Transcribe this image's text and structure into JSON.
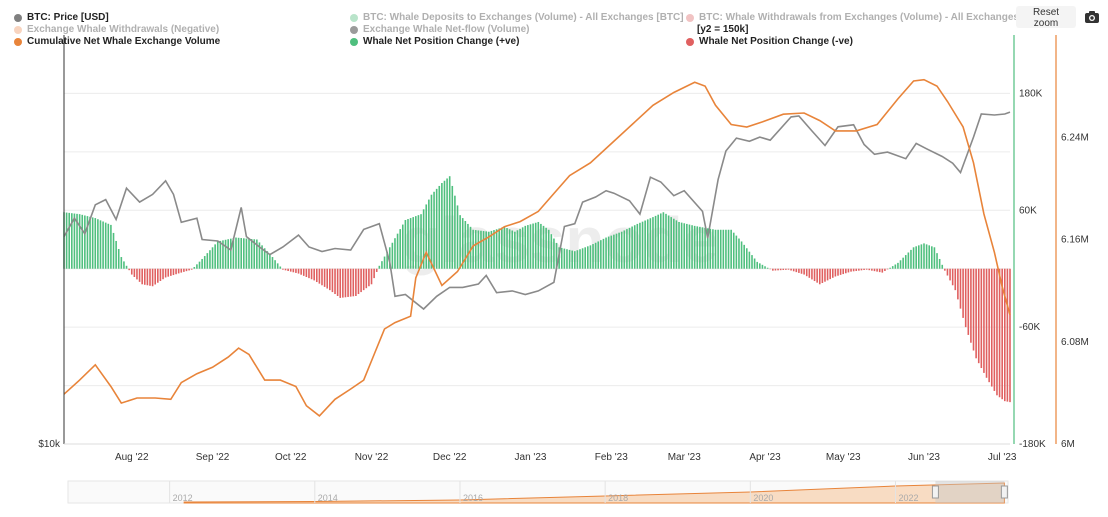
{
  "legend": {
    "items": [
      {
        "label": "BTC: Price [USD]",
        "color": "#808080",
        "faded": false
      },
      {
        "label": "BTC: Whale Deposits to Exchanges (Volume) - All Exchanges [BTC]",
        "color": "#63c48a",
        "faded": true
      },
      {
        "label": "BTC: Whale Withdrawals from Exchanges (Volume) - All Exchanges [BTC]",
        "color": "#e07b7b",
        "faded": true
      },
      {
        "label": "Exchange Whale Withdrawals (Negative)",
        "color": "#f0a070",
        "faded": true
      },
      {
        "label": "Exchange Whale Net-flow (Volume)",
        "color": "#222222",
        "faded": true
      },
      {
        "label": "Cumulative Net Whale Exchange Volume",
        "color": "#e8843a",
        "faded": false
      },
      {
        "label": "Whale Net Position Change (+ve)",
        "color": "#4fbf7e",
        "faded": false
      },
      {
        "label": "Whale Net Position Change (-ve)",
        "color": "#e06060",
        "faded": false
      }
    ],
    "y2_note": "[y2 = 150k]"
  },
  "controls": {
    "reset_zoom": "Reset zoom",
    "camera_icon": "camera-icon"
  },
  "watermark": "glassnode",
  "navigator": {
    "ticks": [
      {
        "year": 2012,
        "label": "2012"
      },
      {
        "year": 2014,
        "label": "2014"
      },
      {
        "year": 2016,
        "label": "2016"
      },
      {
        "year": 2018,
        "label": "2018"
      },
      {
        "year": 2020,
        "label": "2020"
      },
      {
        "year": 2022,
        "label": "2022"
      }
    ],
    "range_start": 2010.6,
    "range_end": 2023.55,
    "selected_start": 2022.55,
    "selected_end": 2023.5
  },
  "chart_data": {
    "type": "mixed",
    "x_range": [
      "2022-07-06",
      "2023-07-04"
    ],
    "x_ticks": [
      {
        "date": "2022-08-01",
        "label": "Aug '22"
      },
      {
        "date": "2022-09-01",
        "label": "Sep '22"
      },
      {
        "date": "2022-10-01",
        "label": "Oct '22"
      },
      {
        "date": "2022-11-01",
        "label": "Nov '22"
      },
      {
        "date": "2022-12-01",
        "label": "Dec '22"
      },
      {
        "date": "2023-01-01",
        "label": "Jan '23"
      },
      {
        "date": "2023-02-01",
        "label": "Feb '23"
      },
      {
        "date": "2023-03-01",
        "label": "Mar '23"
      },
      {
        "date": "2023-04-01",
        "label": "Apr '23"
      },
      {
        "date": "2023-05-01",
        "label": "May '23"
      },
      {
        "date": "2023-06-01",
        "label": "Jun '23"
      },
      {
        "date": "2023-07-01",
        "label": "Jul '23"
      }
    ],
    "left_axis": {
      "label": "$10k",
      "min": 10000,
      "max": 40000,
      "scale": "log"
    },
    "right_axis_1": {
      "min": -180000,
      "max": 240000,
      "ticks": [
        {
          "value": 180000,
          "label": "180K"
        },
        {
          "value": 60000,
          "label": "60K"
        },
        {
          "value": -60000,
          "label": "-60K"
        },
        {
          "value": -180000,
          "label": "-180K"
        }
      ]
    },
    "right_axis_2": {
      "min": 6000000,
      "max": 6320000,
      "ticks": [
        {
          "value": 6240000,
          "label": "6.24M"
        },
        {
          "value": 6160000,
          "label": "6.16M"
        },
        {
          "value": 6080000,
          "label": "6.08M"
        },
        {
          "value": 6000000,
          "label": "6M"
        }
      ]
    },
    "grid": true,
    "series": [
      {
        "name": "BTC: Price [USD]",
        "axis": "left",
        "style": "line",
        "color": "#8a8a8a",
        "points": [
          [
            "2022-07-06",
            20200
          ],
          [
            "2022-07-10",
            21500
          ],
          [
            "2022-07-14",
            20400
          ],
          [
            "2022-07-18",
            22500
          ],
          [
            "2022-07-22",
            22900
          ],
          [
            "2022-07-26",
            21400
          ],
          [
            "2022-07-30",
            23800
          ],
          [
            "2022-08-04",
            22700
          ],
          [
            "2022-08-09",
            23300
          ],
          [
            "2022-08-14",
            24400
          ],
          [
            "2022-08-17",
            23300
          ],
          [
            "2022-08-20",
            21200
          ],
          [
            "2022-08-26",
            21500
          ],
          [
            "2022-08-28",
            20000
          ],
          [
            "2022-09-03",
            19900
          ],
          [
            "2022-09-08",
            19300
          ],
          [
            "2022-09-12",
            22300
          ],
          [
            "2022-09-14",
            20200
          ],
          [
            "2022-09-19",
            19500
          ],
          [
            "2022-09-23",
            19000
          ],
          [
            "2022-09-28",
            19500
          ],
          [
            "2022-10-04",
            20300
          ],
          [
            "2022-10-08",
            19500
          ],
          [
            "2022-10-13",
            19200
          ],
          [
            "2022-10-18",
            19400
          ],
          [
            "2022-10-24",
            19300
          ],
          [
            "2022-10-29",
            20700
          ],
          [
            "2022-11-04",
            21100
          ],
          [
            "2022-11-08",
            18500
          ],
          [
            "2022-11-10",
            16500
          ],
          [
            "2022-11-14",
            16600
          ],
          [
            "2022-11-21",
            15800
          ],
          [
            "2022-11-26",
            16500
          ],
          [
            "2022-12-01",
            17000
          ],
          [
            "2022-12-06",
            17000
          ],
          [
            "2022-12-12",
            17200
          ],
          [
            "2022-12-15",
            17700
          ],
          [
            "2022-12-19",
            16700
          ],
          [
            "2022-12-25",
            16800
          ],
          [
            "2022-12-30",
            16600
          ],
          [
            "2023-01-04",
            16800
          ],
          [
            "2023-01-10",
            17300
          ],
          [
            "2023-01-14",
            20900
          ],
          [
            "2023-01-18",
            21100
          ],
          [
            "2023-01-21",
            22700
          ],
          [
            "2023-01-26",
            23100
          ],
          [
            "2023-01-30",
            23600
          ],
          [
            "2023-02-02",
            23400
          ],
          [
            "2023-02-08",
            22800
          ],
          [
            "2023-02-12",
            21800
          ],
          [
            "2023-02-16",
            24700
          ],
          [
            "2023-02-20",
            24300
          ],
          [
            "2023-02-25",
            23200
          ],
          [
            "2023-03-01",
            23600
          ],
          [
            "2023-03-08",
            22000
          ],
          [
            "2023-03-10",
            20100
          ],
          [
            "2023-03-14",
            24500
          ],
          [
            "2023-03-17",
            27000
          ],
          [
            "2023-03-21",
            28200
          ],
          [
            "2023-03-26",
            27900
          ],
          [
            "2023-03-30",
            28300
          ],
          [
            "2023-04-03",
            28000
          ],
          [
            "2023-04-11",
            30300
          ],
          [
            "2023-04-14",
            30400
          ],
          [
            "2023-04-19",
            28900
          ],
          [
            "2023-04-24",
            27500
          ],
          [
            "2023-04-29",
            29300
          ],
          [
            "2023-05-05",
            29500
          ],
          [
            "2023-05-09",
            27600
          ],
          [
            "2023-05-13",
            26700
          ],
          [
            "2023-05-18",
            26900
          ],
          [
            "2023-05-25",
            26300
          ],
          [
            "2023-05-29",
            27700
          ],
          [
            "2023-06-02",
            27200
          ],
          [
            "2023-06-08",
            26500
          ],
          [
            "2023-06-12",
            25900
          ],
          [
            "2023-06-15",
            25100
          ],
          [
            "2023-06-20",
            28300
          ],
          [
            "2023-06-23",
            30600
          ],
          [
            "2023-06-28",
            30500
          ],
          [
            "2023-07-02",
            30600
          ],
          [
            "2023-07-04",
            30800
          ]
        ]
      },
      {
        "name": "Cumulative Net Whale Exchange Volume",
        "axis": "right_2",
        "style": "line",
        "color": "#e8843a",
        "points": [
          [
            "2022-07-06",
            6039000
          ],
          [
            "2022-07-12",
            6050000
          ],
          [
            "2022-07-18",
            6062000
          ],
          [
            "2022-07-24",
            6045000
          ],
          [
            "2022-07-28",
            6032000
          ],
          [
            "2022-08-03",
            6036000
          ],
          [
            "2022-08-10",
            6036000
          ],
          [
            "2022-08-16",
            6035000
          ],
          [
            "2022-08-20",
            6048000
          ],
          [
            "2022-08-26",
            6055000
          ],
          [
            "2022-09-01",
            6060000
          ],
          [
            "2022-09-07",
            6068000
          ],
          [
            "2022-09-11",
            6075000
          ],
          [
            "2022-09-15",
            6070000
          ],
          [
            "2022-09-21",
            6050000
          ],
          [
            "2022-09-27",
            6050000
          ],
          [
            "2022-10-03",
            6045000
          ],
          [
            "2022-10-07",
            6030000
          ],
          [
            "2022-10-12",
            6022000
          ],
          [
            "2022-10-18",
            6035000
          ],
          [
            "2022-10-24",
            6043000
          ],
          [
            "2022-10-29",
            6050000
          ],
          [
            "2022-11-02",
            6070000
          ],
          [
            "2022-11-06",
            6090000
          ],
          [
            "2022-11-10",
            6095000
          ],
          [
            "2022-11-16",
            6100000
          ],
          [
            "2022-11-18",
            6130000
          ],
          [
            "2022-11-22",
            6150000
          ],
          [
            "2022-11-28",
            6124000
          ],
          [
            "2022-12-04",
            6135000
          ],
          [
            "2022-12-10",
            6155000
          ],
          [
            "2022-12-16",
            6162000
          ],
          [
            "2022-12-22",
            6170000
          ],
          [
            "2022-12-28",
            6174000
          ],
          [
            "2023-01-04",
            6182000
          ],
          [
            "2023-01-10",
            6196000
          ],
          [
            "2023-01-16",
            6210000
          ],
          [
            "2023-01-24",
            6220000
          ],
          [
            "2023-02-01",
            6235000
          ],
          [
            "2023-02-09",
            6250000
          ],
          [
            "2023-02-17",
            6265000
          ],
          [
            "2023-02-25",
            6275000
          ],
          [
            "2023-03-05",
            6283000
          ],
          [
            "2023-03-09",
            6280000
          ],
          [
            "2023-03-13",
            6265000
          ],
          [
            "2023-03-19",
            6250000
          ],
          [
            "2023-03-25",
            6248000
          ],
          [
            "2023-03-31",
            6252000
          ],
          [
            "2023-04-08",
            6258000
          ],
          [
            "2023-04-16",
            6259000
          ],
          [
            "2023-04-22",
            6253000
          ],
          [
            "2023-04-28",
            6245000
          ],
          [
            "2023-05-06",
            6245000
          ],
          [
            "2023-05-14",
            6250000
          ],
          [
            "2023-05-22",
            6270000
          ],
          [
            "2023-05-28",
            6284000
          ],
          [
            "2023-06-01",
            6285000
          ],
          [
            "2023-06-06",
            6280000
          ],
          [
            "2023-06-10",
            6268000
          ],
          [
            "2023-06-16",
            6248000
          ],
          [
            "2023-06-20",
            6220000
          ],
          [
            "2023-06-24",
            6180000
          ],
          [
            "2023-06-28",
            6150000
          ],
          [
            "2023-07-01",
            6123000
          ],
          [
            "2023-07-04",
            6101000
          ]
        ]
      },
      {
        "name": "Whale Net Position Change (+ve/-ve)",
        "axis": "right_1",
        "style": "bars",
        "pos_color": "#4fbf7e",
        "neg_color": "#e06060",
        "points": [
          [
            "2022-07-06",
            58000
          ],
          [
            "2022-07-12",
            56000
          ],
          [
            "2022-07-18",
            52000
          ],
          [
            "2022-07-24",
            45000
          ],
          [
            "2022-07-28",
            12000
          ],
          [
            "2022-08-01",
            -6000
          ],
          [
            "2022-08-05",
            -16000
          ],
          [
            "2022-08-09",
            -18000
          ],
          [
            "2022-08-14",
            -9000
          ],
          [
            "2022-08-20",
            -4000
          ],
          [
            "2022-08-24",
            -1000
          ],
          [
            "2022-08-28",
            10000
          ],
          [
            "2022-09-03",
            28000
          ],
          [
            "2022-09-10",
            32000
          ],
          [
            "2022-09-18",
            30000
          ],
          [
            "2022-09-24",
            12000
          ],
          [
            "2022-09-28",
            -1000
          ],
          [
            "2022-10-04",
            -5000
          ],
          [
            "2022-10-10",
            -12000
          ],
          [
            "2022-10-16",
            -22000
          ],
          [
            "2022-10-20",
            -30000
          ],
          [
            "2022-10-26",
            -28000
          ],
          [
            "2022-11-01",
            -16000
          ],
          [
            "2022-11-04",
            3000
          ],
          [
            "2022-11-08",
            22000
          ],
          [
            "2022-11-14",
            50000
          ],
          [
            "2022-11-20",
            56000
          ],
          [
            "2022-11-24",
            76000
          ],
          [
            "2022-11-28",
            88000
          ],
          [
            "2022-12-01",
            95000
          ],
          [
            "2022-12-05",
            55000
          ],
          [
            "2022-12-10",
            40000
          ],
          [
            "2022-12-16",
            38000
          ],
          [
            "2022-12-22",
            43000
          ],
          [
            "2022-12-26",
            38000
          ],
          [
            "2022-12-30",
            44000
          ],
          [
            "2023-01-04",
            48000
          ],
          [
            "2023-01-08",
            40000
          ],
          [
            "2023-01-12",
            22000
          ],
          [
            "2023-01-18",
            18000
          ],
          [
            "2023-01-24",
            24000
          ],
          [
            "2023-01-30",
            32000
          ],
          [
            "2023-02-05",
            38000
          ],
          [
            "2023-02-11",
            46000
          ],
          [
            "2023-02-17",
            53000
          ],
          [
            "2023-02-21",
            58000
          ],
          [
            "2023-02-27",
            48000
          ],
          [
            "2023-03-05",
            44000
          ],
          [
            "2023-03-13",
            40000
          ],
          [
            "2023-03-19",
            40000
          ],
          [
            "2023-03-23",
            28000
          ],
          [
            "2023-03-29",
            7000
          ],
          [
            "2023-04-04",
            -2000
          ],
          [
            "2023-04-10",
            -1000
          ],
          [
            "2023-04-16",
            -6000
          ],
          [
            "2023-04-22",
            -16000
          ],
          [
            "2023-04-28",
            -8000
          ],
          [
            "2023-05-04",
            -3000
          ],
          [
            "2023-05-10",
            -1000
          ],
          [
            "2023-05-16",
            -4000
          ],
          [
            "2023-05-22",
            6000
          ],
          [
            "2023-05-28",
            22000
          ],
          [
            "2023-06-01",
            26000
          ],
          [
            "2023-06-05",
            22000
          ],
          [
            "2023-06-09",
            -2000
          ],
          [
            "2023-06-13",
            -22000
          ],
          [
            "2023-06-17",
            -60000
          ],
          [
            "2023-06-21",
            -92000
          ],
          [
            "2023-06-25",
            -112000
          ],
          [
            "2023-06-29",
            -130000
          ],
          [
            "2023-07-02",
            -136000
          ],
          [
            "2023-07-04",
            -137000
          ]
        ]
      }
    ]
  }
}
